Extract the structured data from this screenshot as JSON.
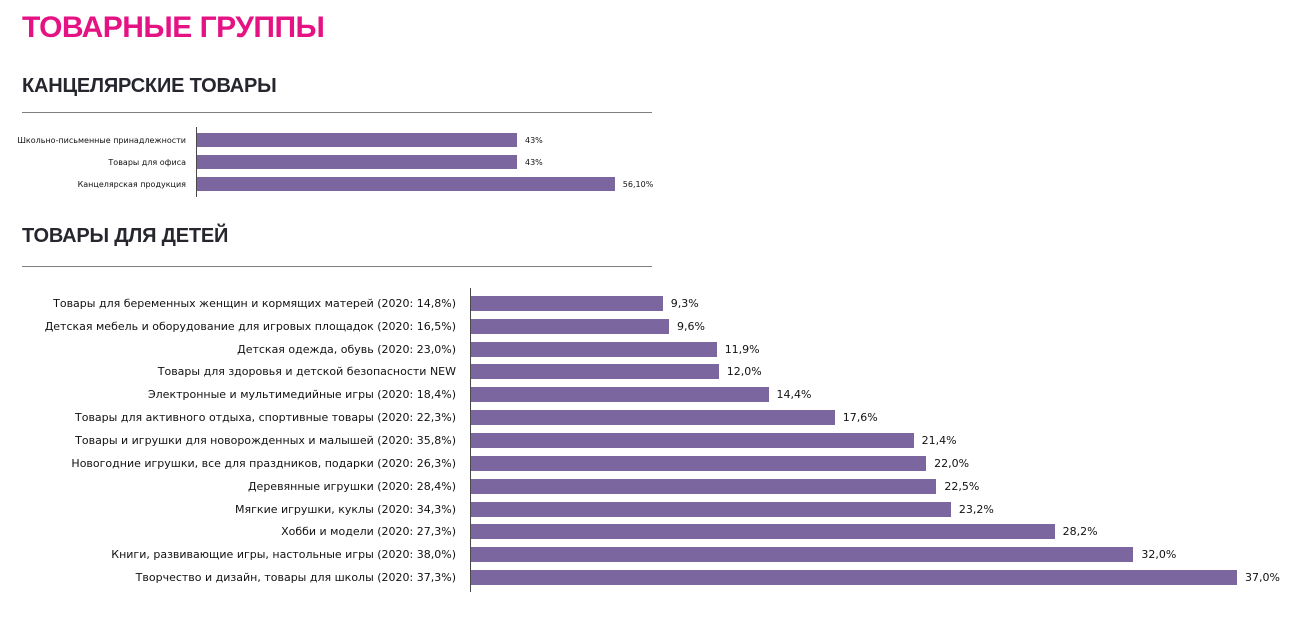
{
  "page_title": "ТОВАРНЫЕ ГРУППЫ",
  "colors": {
    "accent": "#E51284",
    "heading": "#26272E",
    "bar": "#7C66A0",
    "rule": "#7F7F7F",
    "axis": "#4A4A4A",
    "text": "#111111"
  },
  "chart_data": [
    {
      "type": "bar",
      "orientation": "horizontal",
      "title": "КАНЦЕЛЯРСКИЕ ТОВАРЫ",
      "categories": [
        "Школьно-письменные  принадлежности",
        "Товары для офиса",
        "Канцелярская продукция"
      ],
      "values": [
        43,
        43,
        56.1
      ],
      "value_labels": [
        "43%",
        "43%",
        "56,10%"
      ],
      "xlim": [
        0,
        60
      ],
      "grid": false,
      "legend": false,
      "value_axis_visible": false
    },
    {
      "type": "bar",
      "orientation": "horizontal",
      "title": "ТОВАРЫ ДЛЯ ДЕТЕЙ",
      "categories": [
        "Товары для беременных женщин и кормящих матерей (2020: 14,8%)",
        "Детская мебель и  оборудование для игровых площадок (2020: 16,5%)",
        "Детская одежда, обувь (2020: 23,0%)",
        "Товары для здоровья и детской безопасности   NEW",
        "Электронные и мультимедийные  игры (2020: 18,4%)",
        "Товары для активного отдыха, спортивные товары (2020: 22,3%)",
        "Товары и игрушки для новорожденных  и малышей (2020: 35,8%)",
        "Новогодние игрушки, все для праздников, подарки (2020: 26,3%)",
        "Деревянные  игрушки (2020: 28,4%)",
        "Мягкие игрушки, куклы (2020: 34,3%)",
        "Хобби и модели (2020: 27,3%)",
        "Книги, развивающие игры, настольные игры (2020: 38,0%)",
        "Творчество и дизайн, товары для школы (2020: 37,3%)"
      ],
      "values": [
        9.3,
        9.6,
        11.9,
        12.0,
        14.4,
        17.6,
        21.4,
        22.0,
        22.5,
        23.2,
        28.2,
        32.0,
        37.0
      ],
      "value_labels": [
        "9,3%",
        "9,6%",
        "11,9%",
        "12,0%",
        "14,4%",
        "17,6%",
        "21,4%",
        "22,0%",
        "22,5%",
        "23,2%",
        "28,2%",
        "32,0%",
        "37,0%"
      ],
      "xlim": [
        0,
        40
      ],
      "grid": false,
      "legend": false,
      "value_axis_visible": false
    }
  ]
}
